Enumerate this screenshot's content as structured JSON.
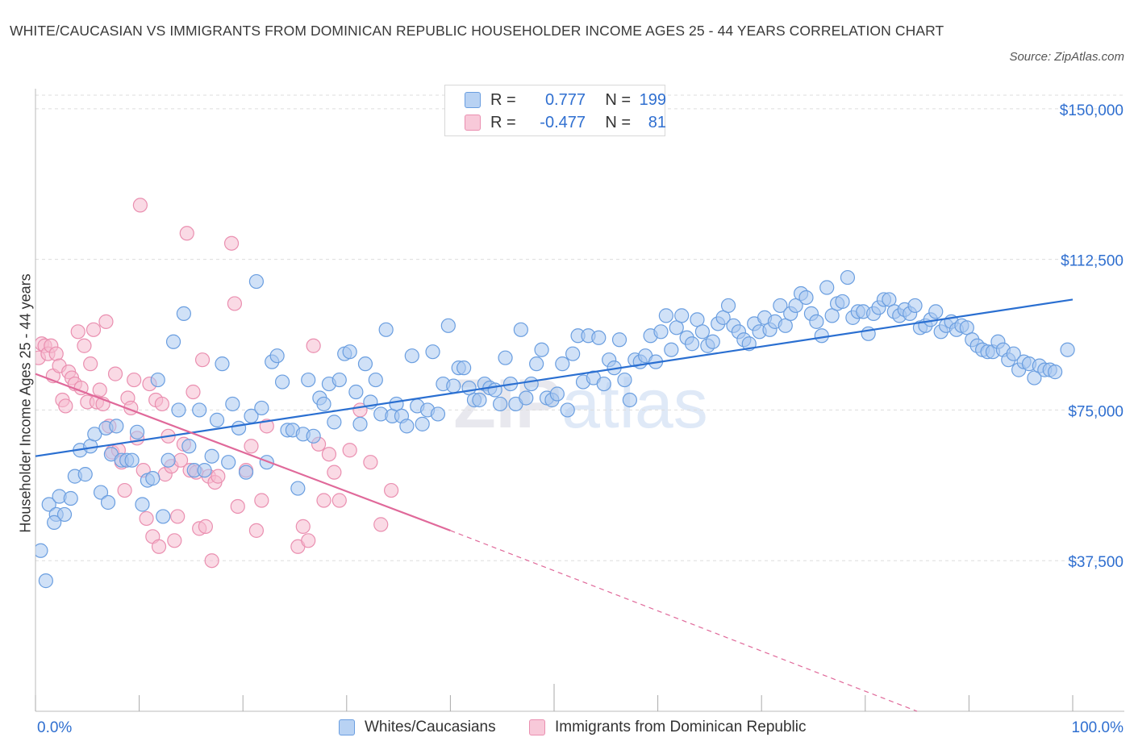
{
  "title": "WHITE/CAUCASIAN VS IMMIGRANTS FROM DOMINICAN REPUBLIC HOUSEHOLDER INCOME AGES 25 - 44 YEARS CORRELATION CHART",
  "source": "Source: ZipAtlas.com",
  "watermark": "ZIPatlas",
  "legend": {
    "rows": [
      {
        "r_label": "R =",
        "r_value": "0.777",
        "n_label": "N =",
        "n_value": "199"
      },
      {
        "r_label": "R =",
        "r_value": "-0.477",
        "n_label": "N =",
        "n_value": "81"
      }
    ]
  },
  "colors": {
    "blue_fill": "#a9c8f0",
    "blue_stroke": "#6a9ee0",
    "blue_line": "#2a6fd1",
    "pink_fill": "#f5bcd0",
    "pink_stroke": "#ea8fb0",
    "pink_line": "#e0699a",
    "axis_text": "#2f6fd0",
    "grid": "#dddddd"
  },
  "chart_data": {
    "type": "scatter",
    "title": "WHITE/CAUCASIAN VS IMMIGRANTS FROM DOMINICAN REPUBLIC HOUSEHOLDER INCOME AGES 25 - 44 YEARS CORRELATION CHART",
    "xlabel": "",
    "ylabel": "Householder Income Ages 25 - 44 years",
    "xlim": [
      0,
      100
    ],
    "ylim": [
      0,
      157000
    ],
    "x_tick_labels": [
      "0.0%",
      "100.0%"
    ],
    "y_ticks": [
      37500,
      75000,
      112500,
      150000
    ],
    "y_tick_labels": [
      "$37,500",
      "$75,000",
      "$112,500",
      "$150,000"
    ],
    "series": [
      {
        "name": "Whites/Caucasians",
        "color": "#a9c8f0",
        "trend": {
          "x": [
            0,
            100
          ],
          "y": [
            63500,
            102500
          ],
          "style": "solid"
        },
        "points": [
          [
            0.5,
            40000
          ],
          [
            1.0,
            32500
          ],
          [
            1.3,
            51500
          ],
          [
            2.0,
            49000
          ],
          [
            2.3,
            53500
          ],
          [
            2.8,
            49000
          ],
          [
            3.4,
            53000
          ],
          [
            3.8,
            58500
          ],
          [
            4.3,
            65000
          ],
          [
            4.8,
            59000
          ],
          [
            5.3,
            66000
          ],
          [
            5.7,
            69000
          ],
          [
            6.3,
            54500
          ],
          [
            6.8,
            70500
          ],
          [
            7.0,
            52000
          ],
          [
            7.3,
            64000
          ],
          [
            7.8,
            71000
          ],
          [
            8.3,
            62500
          ],
          [
            8.8,
            62500
          ],
          [
            9.3,
            62500
          ],
          [
            9.8,
            69500
          ],
          [
            10.3,
            51500
          ],
          [
            10.8,
            57500
          ],
          [
            11.3,
            58000
          ],
          [
            11.8,
            82500
          ],
          [
            12.3,
            48500
          ],
          [
            12.8,
            62500
          ],
          [
            13.3,
            92000
          ],
          [
            13.8,
            75000
          ],
          [
            14.3,
            99000
          ],
          [
            14.8,
            66000
          ],
          [
            15.3,
            60000
          ],
          [
            15.8,
            75000
          ],
          [
            16.3,
            60000
          ],
          [
            17.0,
            63500
          ],
          [
            17.5,
            72500
          ],
          [
            18.0,
            86500
          ],
          [
            18.6,
            62000
          ],
          [
            19.0,
            76500
          ],
          [
            19.6,
            70500
          ],
          [
            20.3,
            59500
          ],
          [
            20.8,
            73500
          ],
          [
            21.3,
            107000
          ],
          [
            21.8,
            75500
          ],
          [
            22.3,
            62000
          ],
          [
            22.8,
            87000
          ],
          [
            23.3,
            88500
          ],
          [
            23.8,
            82000
          ],
          [
            24.3,
            70000
          ],
          [
            24.8,
            70000
          ],
          [
            25.3,
            55500
          ],
          [
            25.8,
            69000
          ],
          [
            26.3,
            82500
          ],
          [
            26.8,
            68500
          ],
          [
            27.4,
            78000
          ],
          [
            27.8,
            76500
          ],
          [
            28.3,
            81500
          ],
          [
            28.8,
            72000
          ],
          [
            29.3,
            82500
          ],
          [
            29.8,
            89000
          ],
          [
            30.3,
            89500
          ],
          [
            30.9,
            79500
          ],
          [
            31.3,
            71500
          ],
          [
            31.8,
            86500
          ],
          [
            32.3,
            77000
          ],
          [
            32.8,
            82500
          ],
          [
            33.3,
            74000
          ],
          [
            33.8,
            95000
          ],
          [
            34.4,
            73500
          ],
          [
            34.8,
            76500
          ],
          [
            35.3,
            73500
          ],
          [
            35.8,
            71000
          ],
          [
            36.3,
            88500
          ],
          [
            36.8,
            76000
          ],
          [
            37.3,
            71500
          ],
          [
            37.8,
            75000
          ],
          [
            38.3,
            89500
          ],
          [
            38.8,
            74000
          ],
          [
            39.3,
            81500
          ],
          [
            39.8,
            96000
          ],
          [
            40.3,
            81000
          ],
          [
            40.8,
            85500
          ],
          [
            41.3,
            85500
          ],
          [
            41.8,
            80500
          ],
          [
            42.3,
            77500
          ],
          [
            42.8,
            77500
          ],
          [
            43.3,
            81500
          ],
          [
            43.8,
            80500
          ],
          [
            44.3,
            80000
          ],
          [
            44.8,
            76500
          ],
          [
            45.3,
            88000
          ],
          [
            45.8,
            81500
          ],
          [
            46.3,
            76500
          ],
          [
            46.8,
            95000
          ],
          [
            47.3,
            78000
          ],
          [
            47.8,
            81500
          ],
          [
            48.3,
            86500
          ],
          [
            48.8,
            90000
          ],
          [
            49.3,
            78000
          ],
          [
            49.8,
            77500
          ],
          [
            50.3,
            79000
          ],
          [
            50.8,
            86500
          ],
          [
            51.3,
            75000
          ],
          [
            51.8,
            89000
          ],
          [
            52.3,
            93500
          ],
          [
            52.8,
            82000
          ],
          [
            53.3,
            93500
          ],
          [
            53.8,
            83000
          ],
          [
            54.3,
            93000
          ],
          [
            54.8,
            81500
          ],
          [
            55.3,
            87500
          ],
          [
            55.8,
            85500
          ],
          [
            56.3,
            92500
          ],
          [
            56.8,
            82500
          ],
          [
            57.3,
            77500
          ],
          [
            57.8,
            87500
          ],
          [
            58.3,
            87000
          ],
          [
            58.8,
            88500
          ],
          [
            59.3,
            93500
          ],
          [
            59.8,
            87000
          ],
          [
            60.3,
            94500
          ],
          [
            60.8,
            98500
          ],
          [
            61.3,
            90000
          ],
          [
            61.8,
            95500
          ],
          [
            62.3,
            98500
          ],
          [
            62.8,
            93000
          ],
          [
            63.3,
            91500
          ],
          [
            63.8,
            97500
          ],
          [
            64.3,
            94500
          ],
          [
            64.8,
            91000
          ],
          [
            65.3,
            92000
          ],
          [
            65.8,
            96500
          ],
          [
            66.3,
            98000
          ],
          [
            66.8,
            101000
          ],
          [
            67.3,
            96000
          ],
          [
            67.8,
            94500
          ],
          [
            68.3,
            92500
          ],
          [
            68.8,
            91500
          ],
          [
            69.3,
            96500
          ],
          [
            69.8,
            94500
          ],
          [
            70.3,
            98000
          ],
          [
            70.8,
            95000
          ],
          [
            71.3,
            97000
          ],
          [
            71.8,
            101000
          ],
          [
            72.3,
            96000
          ],
          [
            72.8,
            99000
          ],
          [
            73.3,
            101000
          ],
          [
            73.8,
            104000
          ],
          [
            74.3,
            103000
          ],
          [
            74.8,
            99000
          ],
          [
            75.3,
            97000
          ],
          [
            75.8,
            93500
          ],
          [
            76.3,
            105500
          ],
          [
            76.8,
            98500
          ],
          [
            77.3,
            101500
          ],
          [
            77.8,
            102000
          ],
          [
            78.3,
            108000
          ],
          [
            78.8,
            98000
          ],
          [
            79.3,
            99500
          ],
          [
            79.8,
            99500
          ],
          [
            80.3,
            94000
          ],
          [
            80.8,
            99000
          ],
          [
            81.3,
            100500
          ],
          [
            81.8,
            102500
          ],
          [
            82.3,
            102500
          ],
          [
            82.8,
            99500
          ],
          [
            83.3,
            98500
          ],
          [
            83.8,
            100000
          ],
          [
            84.3,
            99000
          ],
          [
            84.8,
            101000
          ],
          [
            85.3,
            95500
          ],
          [
            85.8,
            96000
          ],
          [
            86.3,
            97500
          ],
          [
            86.8,
            99500
          ],
          [
            87.3,
            94500
          ],
          [
            87.8,
            96000
          ],
          [
            88.3,
            97000
          ],
          [
            88.8,
            95000
          ],
          [
            89.3,
            96000
          ],
          [
            89.8,
            95500
          ],
          [
            90.3,
            92500
          ],
          [
            90.8,
            91000
          ],
          [
            91.3,
            90000
          ],
          [
            91.8,
            89500
          ],
          [
            92.3,
            89500
          ],
          [
            92.8,
            92000
          ],
          [
            93.3,
            90000
          ],
          [
            93.8,
            87500
          ],
          [
            94.3,
            89000
          ],
          [
            94.8,
            85000
          ],
          [
            95.3,
            87000
          ],
          [
            95.8,
            86500
          ],
          [
            96.3,
            83000
          ],
          [
            96.8,
            86000
          ],
          [
            97.3,
            85000
          ],
          [
            97.8,
            85000
          ],
          [
            98.3,
            84500
          ],
          [
            99.5,
            90000
          ],
          [
            1.8,
            47000
          ]
        ]
      },
      {
        "name": "Immigrants from Dominican Republic",
        "color": "#f5bcd0",
        "trend": {
          "x": [
            0,
            40
          ],
          "y": [
            84000,
            45000
          ],
          "style": "solid",
          "dashed_to": [
            100,
            -15000
          ]
        },
        "points": [
          [
            0.3,
            88000
          ],
          [
            0.6,
            91500
          ],
          [
            0.9,
            91000
          ],
          [
            1.2,
            89000
          ],
          [
            1.5,
            91000
          ],
          [
            1.7,
            83500
          ],
          [
            2.0,
            89000
          ],
          [
            2.3,
            86000
          ],
          [
            2.6,
            77500
          ],
          [
            2.9,
            76000
          ],
          [
            3.2,
            84500
          ],
          [
            3.5,
            83000
          ],
          [
            3.8,
            81500
          ],
          [
            4.1,
            94500
          ],
          [
            4.4,
            80500
          ],
          [
            4.7,
            91000
          ],
          [
            5.0,
            77000
          ],
          [
            5.3,
            86500
          ],
          [
            5.6,
            95000
          ],
          [
            5.9,
            77000
          ],
          [
            6.2,
            80000
          ],
          [
            6.5,
            76500
          ],
          [
            6.8,
            97000
          ],
          [
            7.1,
            71000
          ],
          [
            7.4,
            64500
          ],
          [
            7.7,
            84000
          ],
          [
            8.0,
            65000
          ],
          [
            8.3,
            62000
          ],
          [
            8.6,
            55000
          ],
          [
            8.9,
            78000
          ],
          [
            9.2,
            75500
          ],
          [
            9.5,
            82500
          ],
          [
            9.8,
            68000
          ],
          [
            10.1,
            126000
          ],
          [
            10.4,
            60000
          ],
          [
            10.7,
            48000
          ],
          [
            11.0,
            81500
          ],
          [
            11.3,
            43500
          ],
          [
            11.6,
            77500
          ],
          [
            11.9,
            41000
          ],
          [
            12.2,
            76500
          ],
          [
            12.5,
            59000
          ],
          [
            12.8,
            68500
          ],
          [
            13.1,
            61000
          ],
          [
            13.4,
            42500
          ],
          [
            13.7,
            48500
          ],
          [
            14.0,
            62500
          ],
          [
            14.3,
            66500
          ],
          [
            14.6,
            119000
          ],
          [
            14.9,
            60000
          ],
          [
            15.2,
            79500
          ],
          [
            15.5,
            59500
          ],
          [
            15.8,
            45500
          ],
          [
            16.1,
            87500
          ],
          [
            16.4,
            46000
          ],
          [
            16.7,
            58500
          ],
          [
            17.0,
            37500
          ],
          [
            17.3,
            57000
          ],
          [
            17.6,
            58500
          ],
          [
            18.9,
            116500
          ],
          [
            19.2,
            101500
          ],
          [
            19.5,
            51000
          ],
          [
            20.3,
            60000
          ],
          [
            20.8,
            66000
          ],
          [
            21.3,
            45000
          ],
          [
            21.8,
            52500
          ],
          [
            22.3,
            71000
          ],
          [
            25.3,
            41000
          ],
          [
            25.8,
            46000
          ],
          [
            26.3,
            42500
          ],
          [
            26.8,
            91000
          ],
          [
            27.3,
            66500
          ],
          [
            27.8,
            52500
          ],
          [
            28.3,
            64000
          ],
          [
            28.8,
            59500
          ],
          [
            29.3,
            52500
          ],
          [
            30.3,
            65000
          ],
          [
            31.3,
            75000
          ],
          [
            32.3,
            62000
          ],
          [
            33.3,
            46500
          ],
          [
            34.3,
            55000
          ]
        ]
      }
    ]
  },
  "bottom_legend": [
    {
      "label": "Whites/Caucasians"
    },
    {
      "label": "Immigrants from Dominican Republic"
    }
  ]
}
